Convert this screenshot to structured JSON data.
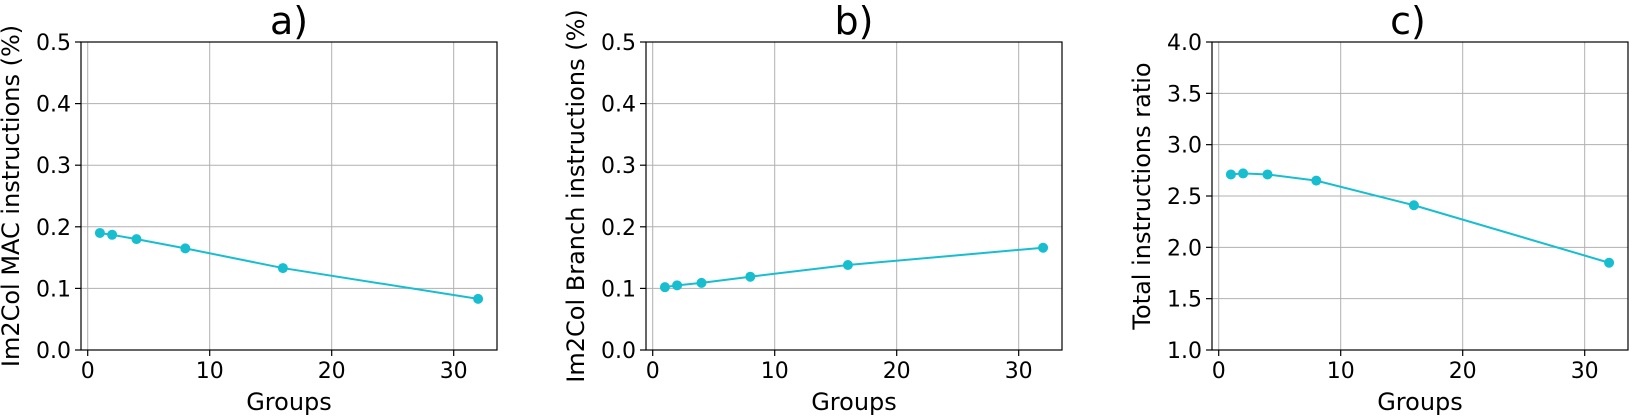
{
  "chart_data": [
    {
      "type": "line",
      "title": "a)",
      "xlabel": "Groups",
      "ylabel": "Im2Col MAC instructions (%)",
      "xlim": [
        -0.55,
        33.55
      ],
      "ylim": [
        0,
        0.5
      ],
      "xticks": [
        0,
        10,
        20,
        30
      ],
      "yticks": [
        0.0,
        0.1,
        0.2,
        0.3,
        0.4,
        0.5
      ],
      "xtick_labels": [
        "0",
        "10",
        "20",
        "30"
      ],
      "ytick_labels": [
        "0.0",
        "0.1",
        "0.2",
        "0.3",
        "0.4",
        "0.5"
      ],
      "grid": true,
      "color": "#17becf",
      "x": [
        1,
        2,
        4,
        8,
        16,
        32
      ],
      "y": [
        0.19,
        0.187,
        0.18,
        0.165,
        0.133,
        0.083
      ]
    },
    {
      "type": "line",
      "title": "b)",
      "xlabel": "Groups",
      "ylabel": "Im2Col Branch instructions (%)",
      "xlim": [
        -0.55,
        33.55
      ],
      "ylim": [
        0,
        0.5
      ],
      "xticks": [
        0,
        10,
        20,
        30
      ],
      "yticks": [
        0.0,
        0.1,
        0.2,
        0.3,
        0.4,
        0.5
      ],
      "xtick_labels": [
        "0",
        "10",
        "20",
        "30"
      ],
      "ytick_labels": [
        "0.0",
        "0.1",
        "0.2",
        "0.3",
        "0.4",
        "0.5"
      ],
      "grid": true,
      "color": "#17becf",
      "x": [
        1,
        2,
        4,
        8,
        16,
        32
      ],
      "y": [
        0.102,
        0.105,
        0.109,
        0.119,
        0.138,
        0.166
      ]
    },
    {
      "type": "line",
      "title": "c)",
      "xlabel": "Groups",
      "ylabel": "Total instructions ratio",
      "xlim": [
        -0.55,
        33.55
      ],
      "ylim": [
        1.0,
        4.0
      ],
      "xticks": [
        0,
        10,
        20,
        30
      ],
      "yticks": [
        1.0,
        1.5,
        2.0,
        2.5,
        3.0,
        3.5,
        4.0
      ],
      "xtick_labels": [
        "0",
        "10",
        "20",
        "30"
      ],
      "ytick_labels": [
        "1.0",
        "1.5",
        "2.0",
        "2.5",
        "3.0",
        "3.5",
        "4.0"
      ],
      "grid": true,
      "color": "#17becf",
      "x": [
        1,
        2,
        4,
        8,
        16,
        32
      ],
      "y": [
        2.71,
        2.72,
        2.71,
        2.65,
        2.41,
        1.85
      ]
    }
  ]
}
